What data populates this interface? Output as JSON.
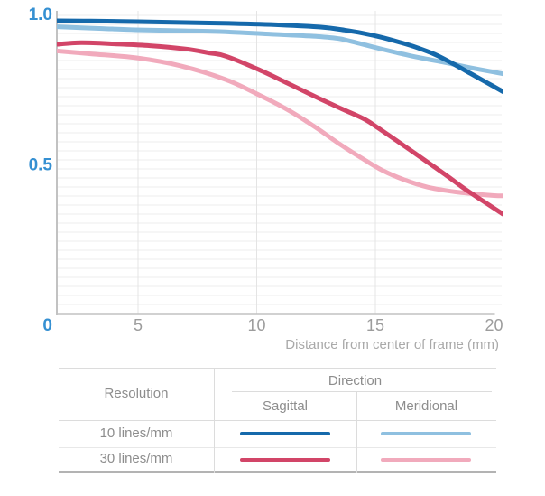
{
  "chart_data": {
    "type": "line",
    "title": "",
    "xlabel": "Distance from center of frame (mm)",
    "ylabel": "",
    "xlim": [
      0,
      20.5
    ],
    "ylim": [
      0,
      1.0
    ],
    "x_ticks": [
      5,
      10,
      15,
      20
    ],
    "x_tick_labels": [
      "5",
      "10",
      "15",
      "20"
    ],
    "y_ticks": [
      1.0,
      0.5,
      0
    ],
    "y_tick_labels": [
      "1.0",
      "0.5",
      "0"
    ],
    "grid": true,
    "legend_position": "table-below",
    "series": [
      {
        "name": "10 lines/mm Sagittal",
        "color": "#1569ab",
        "points": [
          [
            1.5,
            0.976
          ],
          [
            3,
            0.975
          ],
          [
            5,
            0.973
          ],
          [
            7,
            0.97
          ],
          [
            9,
            0.967
          ],
          [
            11,
            0.962
          ],
          [
            12.7,
            0.955
          ],
          [
            13.7,
            0.945
          ],
          [
            14.5,
            0.934
          ],
          [
            15.2,
            0.922
          ],
          [
            16,
            0.905
          ],
          [
            16.7,
            0.888
          ],
          [
            17.5,
            0.864
          ],
          [
            18.2,
            0.836
          ],
          [
            19,
            0.801
          ],
          [
            19.7,
            0.77
          ],
          [
            20.4,
            0.739
          ]
        ]
      },
      {
        "name": "10 lines/mm Meridional",
        "color": "#8fc0e0",
        "points": [
          [
            1.5,
            0.956
          ],
          [
            3.5,
            0.95
          ],
          [
            4.9,
            0.946
          ],
          [
            6.8,
            0.943
          ],
          [
            8.7,
            0.939
          ],
          [
            10.5,
            0.932
          ],
          [
            12.5,
            0.924
          ],
          [
            13.5,
            0.916
          ],
          [
            14.4,
            0.899
          ],
          [
            15.2,
            0.883
          ],
          [
            16,
            0.868
          ],
          [
            17,
            0.851
          ],
          [
            18,
            0.836
          ],
          [
            19,
            0.82
          ],
          [
            20,
            0.805
          ],
          [
            20.4,
            0.799
          ]
        ]
      },
      {
        "name": "30 lines/mm Sagittal",
        "color": "#d24568",
        "points": [
          [
            1.5,
            0.897
          ],
          [
            2.6,
            0.903
          ],
          [
            4,
            0.899
          ],
          [
            5.5,
            0.893
          ],
          [
            7,
            0.882
          ],
          [
            8,
            0.869
          ],
          [
            8.7,
            0.858
          ],
          [
            10.1,
            0.813
          ],
          [
            11.3,
            0.768
          ],
          [
            12.5,
            0.722
          ],
          [
            13.6,
            0.682
          ],
          [
            14.5,
            0.65
          ],
          [
            15.1,
            0.62
          ],
          [
            16.3,
            0.555
          ],
          [
            17.4,
            0.494
          ],
          [
            18.1,
            0.455
          ],
          [
            18.7,
            0.42
          ],
          [
            19.4,
            0.383
          ],
          [
            20.4,
            0.331
          ]
        ]
      },
      {
        "name": "30 lines/mm Meridional",
        "color": "#f1aabc",
        "points": [
          [
            1.5,
            0.876
          ],
          [
            3,
            0.866
          ],
          [
            4.9,
            0.853
          ],
          [
            6.8,
            0.826
          ],
          [
            8.7,
            0.78
          ],
          [
            10.1,
            0.729
          ],
          [
            11.3,
            0.68
          ],
          [
            12.5,
            0.62
          ],
          [
            13.5,
            0.565
          ],
          [
            14.5,
            0.515
          ],
          [
            15.3,
            0.478
          ],
          [
            16.2,
            0.447
          ],
          [
            17.2,
            0.422
          ],
          [
            18.2,
            0.408
          ],
          [
            19.1,
            0.4
          ],
          [
            20,
            0.394
          ],
          [
            20.5,
            0.393
          ]
        ]
      }
    ]
  },
  "legend_table": {
    "resolution_header": "Resolution",
    "direction_header": "Direction",
    "sagittal_header": "Sagittal",
    "meridional_header": "Meridional",
    "rows": [
      {
        "label": "10 lines/mm"
      },
      {
        "label": "30 lines/mm"
      }
    ]
  },
  "colors": {
    "y_label_blue": "#3590d2",
    "x_label_gray": "#9c9c9c",
    "caption_gray": "#a9a9a9",
    "h_grid": "#eeeeee",
    "v_grid": "#e4e4e4",
    "axis": "#c2c2c2"
  }
}
